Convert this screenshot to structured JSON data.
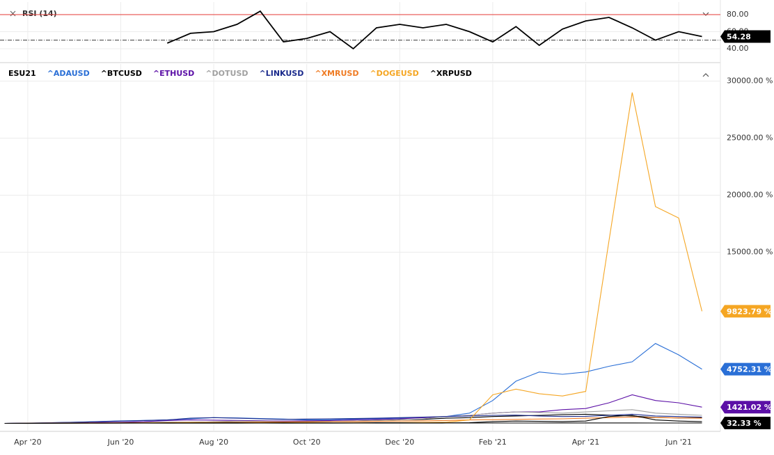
{
  "chart_data": [
    {
      "type": "line",
      "title": "RSI (14)",
      "color": "#000000",
      "values": [
        null,
        null,
        null,
        null,
        null,
        null,
        null,
        46.5,
        58,
        60,
        68.6,
        84,
        48,
        52,
        60,
        40,
        64.5,
        68.6,
        64.5,
        68.6,
        60,
        48,
        66,
        44,
        63,
        72.6,
        76.7,
        64.5,
        50,
        60,
        54.28
      ],
      "value_labels": [
        null,
        null,
        null,
        null,
        null,
        null,
        null,
        null,
        null,
        null,
        null,
        null,
        null,
        null,
        null,
        null,
        null,
        null,
        null,
        null,
        null,
        null,
        null,
        null,
        null,
        null,
        null,
        null,
        null,
        null,
        "54.28"
      ],
      "ylim": [
        25.3,
        94.7
      ],
      "yticks": [
        {
          "value": 40,
          "label": "40.00"
        },
        {
          "value": 60,
          "label": "60.00"
        },
        {
          "value": 80,
          "label": "80.00"
        }
      ],
      "hlines": [
        {
          "value": 80,
          "color": "#e53935",
          "style": "solid"
        },
        {
          "value": 50,
          "color": "#333333",
          "style": "dashdot"
        }
      ],
      "grid": true
    },
    {
      "type": "line",
      "categories": [
        null,
        "Apr '20",
        null,
        null,
        null,
        "Jun '20",
        null,
        null,
        null,
        "Aug '20",
        null,
        null,
        null,
        "Oct '20",
        null,
        null,
        null,
        "Dec '20",
        null,
        null,
        null,
        "Feb '21",
        null,
        null,
        null,
        "Apr '21",
        null,
        null,
        null,
        "Jun '21",
        null
      ],
      "series": [
        {
          "name": "ESU21",
          "color": "#000000",
          "values": [
            0,
            -5,
            2,
            8,
            10,
            12,
            14,
            16,
            18,
            20,
            22,
            24,
            20,
            22,
            18,
            24,
            26,
            28,
            28,
            30,
            30,
            32,
            34,
            34,
            36,
            38,
            38,
            36,
            34,
            34,
            32.33
          ],
          "value_labels": [
            null,
            null,
            null,
            null,
            null,
            null,
            null,
            null,
            null,
            null,
            null,
            null,
            null,
            null,
            null,
            null,
            null,
            null,
            null,
            null,
            null,
            null,
            null,
            null,
            null,
            null,
            null,
            null,
            null,
            null,
            "32.33 %"
          ]
        },
        {
          "name": "^ADAUSD",
          "color": "#2a6fd6",
          "values": [
            0,
            20,
            60,
            100,
            160,
            220,
            260,
            300,
            400,
            500,
            480,
            420,
            380,
            300,
            320,
            380,
            400,
            450,
            500,
            600,
            900,
            2000,
            3700,
            4500,
            4300,
            4500,
            5000,
            5400,
            7000,
            6000,
            4752.31
          ],
          "value_labels": [
            null,
            null,
            null,
            null,
            null,
            null,
            null,
            null,
            null,
            null,
            null,
            null,
            null,
            null,
            null,
            null,
            null,
            null,
            null,
            null,
            null,
            null,
            null,
            null,
            null,
            null,
            null,
            null,
            null,
            null,
            "4752.31 %"
          ]
        },
        {
          "name": "^BTCUSD",
          "color": "#000000",
          "values": [
            0,
            10,
            30,
            40,
            50,
            60,
            70,
            80,
            100,
            110,
            100,
            90,
            100,
            120,
            150,
            200,
            260,
            320,
            350,
            450,
            500,
            600,
            650,
            700,
            760,
            800,
            720,
            640,
            520,
            480,
            500
          ]
        },
        {
          "name": "^ETHUSD",
          "color": "#5b0fa6",
          "values": [
            0,
            20,
            40,
            60,
            80,
            100,
            150,
            250,
            300,
            280,
            260,
            230,
            200,
            230,
            250,
            300,
            350,
            400,
            500,
            600,
            700,
            900,
            1000,
            1000,
            1200,
            1300,
            1800,
            2500,
            2000,
            1800,
            1421.02
          ],
          "value_labels": [
            null,
            null,
            null,
            null,
            null,
            null,
            null,
            null,
            null,
            null,
            null,
            null,
            null,
            null,
            null,
            null,
            null,
            null,
            null,
            null,
            null,
            null,
            null,
            null,
            null,
            null,
            null,
            null,
            null,
            null,
            "1421.02 %"
          ]
        },
        {
          "name": "^DOTUSD",
          "color": "#a0a0a0",
          "values": [
            0,
            0,
            0,
            0,
            0,
            0,
            0,
            20,
            60,
            150,
            200,
            180,
            150,
            160,
            180,
            200,
            250,
            300,
            400,
            600,
            700,
            900,
            1000,
            950,
            900,
            1000,
            1100,
            1200,
            900,
            800,
            700
          ]
        },
        {
          "name": "^LINKUSD",
          "color": "#1a2a8c",
          "values": [
            0,
            30,
            60,
            100,
            150,
            200,
            250,
            300,
            450,
            500,
            450,
            400,
            350,
            380,
            400,
            420,
            450,
            500,
            550,
            600,
            650,
            700,
            720,
            650,
            600,
            620,
            700,
            800,
            650,
            600,
            550
          ]
        },
        {
          "name": "^XMRUSD",
          "color": "#ef7b23",
          "values": [
            0,
            10,
            20,
            30,
            40,
            50,
            60,
            70,
            80,
            90,
            100,
            110,
            120,
            140,
            150,
            160,
            180,
            200,
            220,
            250,
            300,
            320,
            350,
            380,
            400,
            450,
            500,
            550,
            500,
            480,
            450
          ]
        },
        {
          "name": "^DOGEUSD",
          "color": "#f5a623",
          "values": [
            0,
            5,
            10,
            15,
            20,
            30,
            40,
            60,
            80,
            70,
            60,
            50,
            40,
            50,
            40,
            50,
            60,
            70,
            80,
            100,
            300,
            2500,
            3000,
            2600,
            2400,
            2800,
            16000,
            29000,
            19000,
            18000,
            9823.79
          ],
          "value_labels": [
            null,
            null,
            null,
            null,
            null,
            null,
            null,
            null,
            null,
            null,
            null,
            null,
            null,
            null,
            null,
            null,
            null,
            null,
            null,
            null,
            null,
            null,
            null,
            null,
            null,
            null,
            null,
            null,
            null,
            null,
            "9823.79 %"
          ]
        },
        {
          "name": "^XRPUSD",
          "color": "#000000",
          "values": [
            0,
            5,
            10,
            15,
            20,
            25,
            30,
            35,
            40,
            45,
            50,
            40,
            35,
            30,
            35,
            40,
            60,
            50,
            40,
            45,
            60,
            150,
            200,
            180,
            160,
            200,
            600,
            700,
            300,
            200,
            150
          ]
        }
      ],
      "ylim": [
        -700,
        31500
      ],
      "yticks": [
        {
          "value": 15000,
          "label": "15000.00 %"
        },
        {
          "value": 20000,
          "label": "20000.00 %"
        },
        {
          "value": 25000,
          "label": "25000.00 %"
        },
        {
          "value": 30000,
          "label": "30000.00 %"
        }
      ],
      "grid": true
    }
  ]
}
